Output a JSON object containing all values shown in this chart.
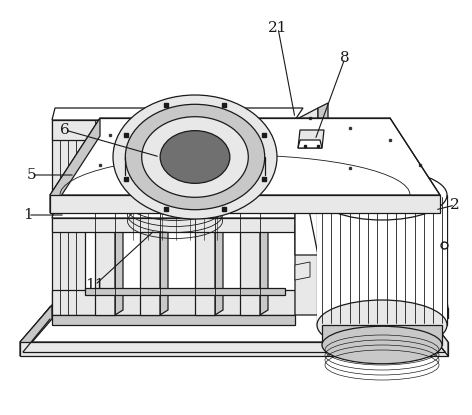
{
  "bg_color": "#ffffff",
  "line_color": "#1a1a1a",
  "fill_white": "#ffffff",
  "fill_light": "#e8e8e8",
  "fill_mid": "#c8c8c8",
  "fill_dark": "#a0a0a0",
  "fill_vdark": "#707070",
  "label_fontsize": 11,
  "figsize": [
    4.72,
    4.15
  ],
  "dpi": 100
}
